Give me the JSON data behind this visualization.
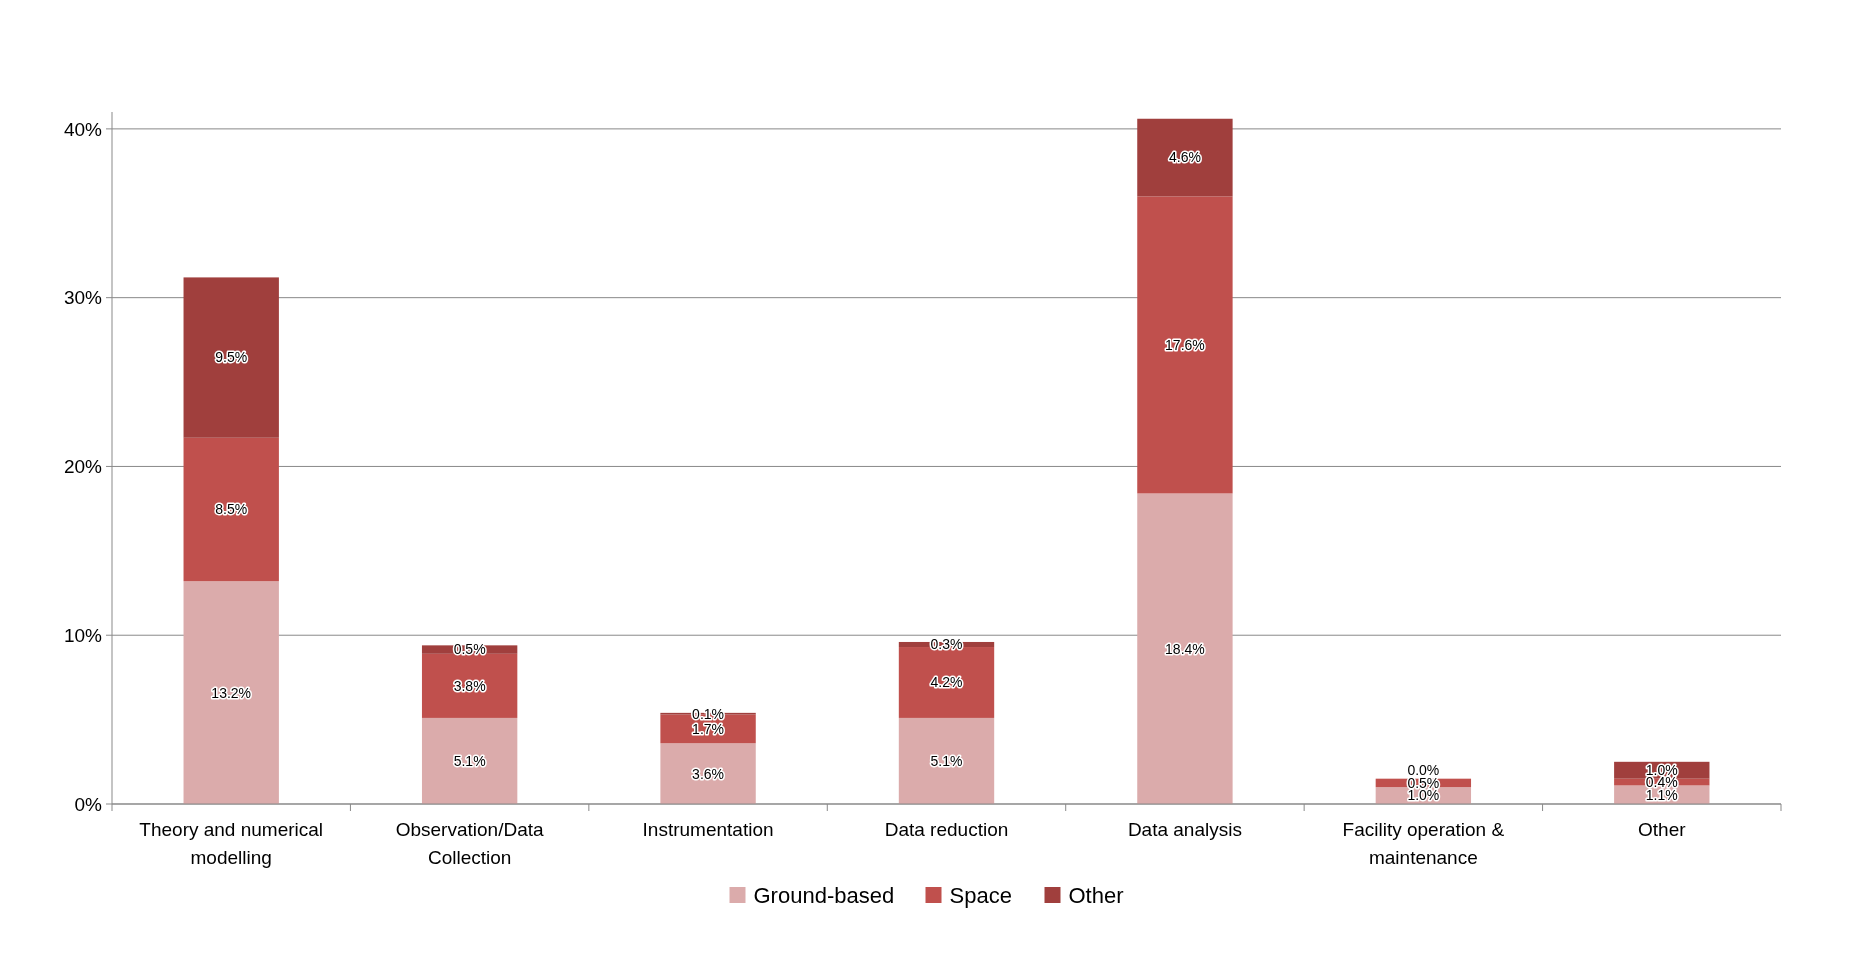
{
  "chart_data": {
    "type": "bar",
    "stacked": true,
    "categories": [
      "Theory and numerical modelling",
      "Observation/Data Collection",
      "Instrumentation",
      "Data reduction",
      "Data analysis",
      "Facility operation & maintenance",
      "Other"
    ],
    "series": [
      {
        "name": "Ground-based",
        "color": "#dbabab",
        "values": [
          13.2,
          5.1,
          3.6,
          5.1,
          18.4,
          1.0,
          1.1
        ],
        "value_labels": [
          "13.2%",
          "5.1%",
          "3.6%",
          "5.1%",
          "18.4%",
          "1.0%",
          "1.1%"
        ]
      },
      {
        "name": "Space",
        "color": "#c0504d",
        "values": [
          8.5,
          3.8,
          1.7,
          4.2,
          17.6,
          0.5,
          0.4
        ],
        "value_labels": [
          "8.5%",
          "3.8%",
          "1.7%",
          "4.2%",
          "17.6%",
          "0.5%",
          "0.4%"
        ]
      },
      {
        "name": "Other",
        "color": "#a03f3d",
        "values": [
          9.5,
          0.5,
          0.1,
          0.3,
          4.6,
          0.0,
          1.0
        ],
        "value_labels": [
          "9.5%",
          "0.5%",
          "0.1%",
          "0.3%",
          "4.6%",
          "0.0%",
          "1.0%"
        ]
      }
    ],
    "ylim": [
      0,
      41
    ],
    "yticks": [
      {
        "value": 0,
        "label": "0%"
      },
      {
        "value": 10,
        "label": "10%"
      },
      {
        "value": 20,
        "label": "20%"
      },
      {
        "value": 30,
        "label": "30%"
      },
      {
        "value": 40,
        "label": "40%"
      }
    ],
    "grid": "y",
    "legend": "bottom"
  }
}
